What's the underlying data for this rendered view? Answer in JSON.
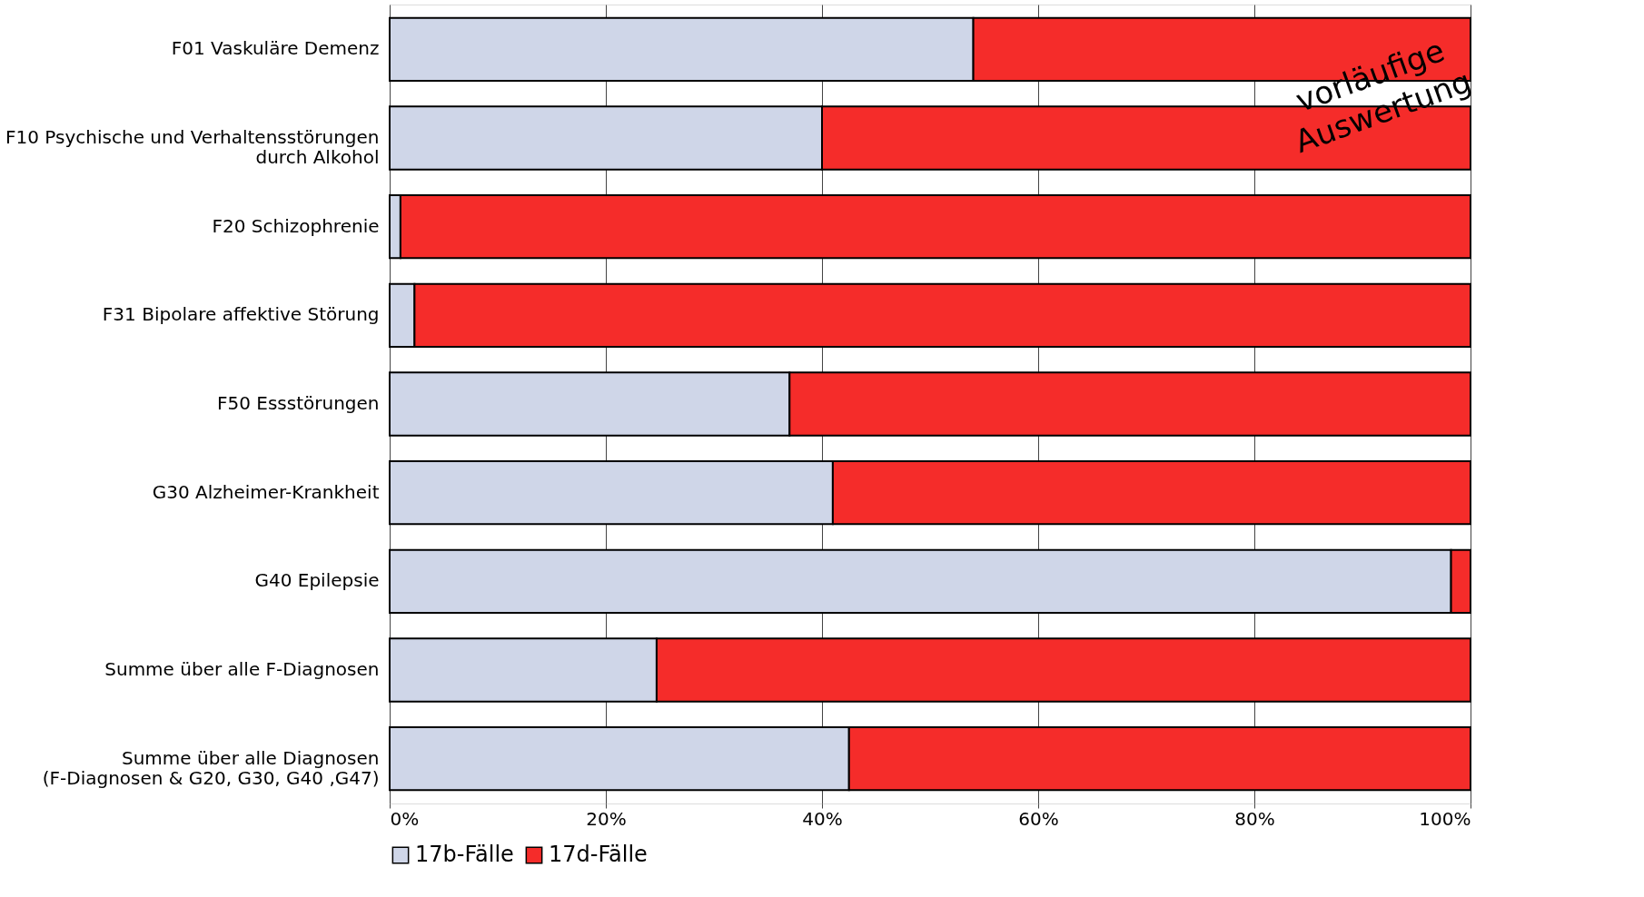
{
  "chart_data": {
    "type": "bar",
    "orientation": "horizontal",
    "stacked": true,
    "categories": [
      "F01 Vaskuläre Demenz",
      "F10 Psychische und Verhaltensstörungen\ndurch Alkohol",
      "F20 Schizophrenie",
      "F31 Bipolare affektive Störung",
      "F50 Essstörungen",
      "G30 Alzheimer-Krankheit",
      "G40 Epilepsie",
      "Summe über alle F-Diagnosen",
      "Summe über alle Diagnosen\n(F-Diagnosen & G20, G30, G40 ,G47)"
    ],
    "series": [
      {
        "name": "17b-Fälle",
        "color": "#cfd6e8",
        "values": [
          54,
          40,
          1,
          2.3,
          37,
          41,
          98.2,
          24.7,
          42.5
        ]
      },
      {
        "name": "17d-Fälle",
        "color": "#f52c2a",
        "values": [
          46,
          60,
          99,
          97.7,
          63,
          59,
          1.8,
          75.3,
          57.5
        ]
      }
    ],
    "xlim": [
      0,
      100
    ],
    "xticks": [
      {
        "value": 0,
        "label": "0%"
      },
      {
        "value": 20,
        "label": "20%"
      },
      {
        "value": 40,
        "label": "40%"
      },
      {
        "value": 60,
        "label": "60%"
      },
      {
        "value": 80,
        "label": "80%"
      },
      {
        "value": 100,
        "label": "100%"
      }
    ],
    "grid": "x",
    "legend": "bottom",
    "annotations": [
      "vorläufige Auswertung"
    ]
  }
}
